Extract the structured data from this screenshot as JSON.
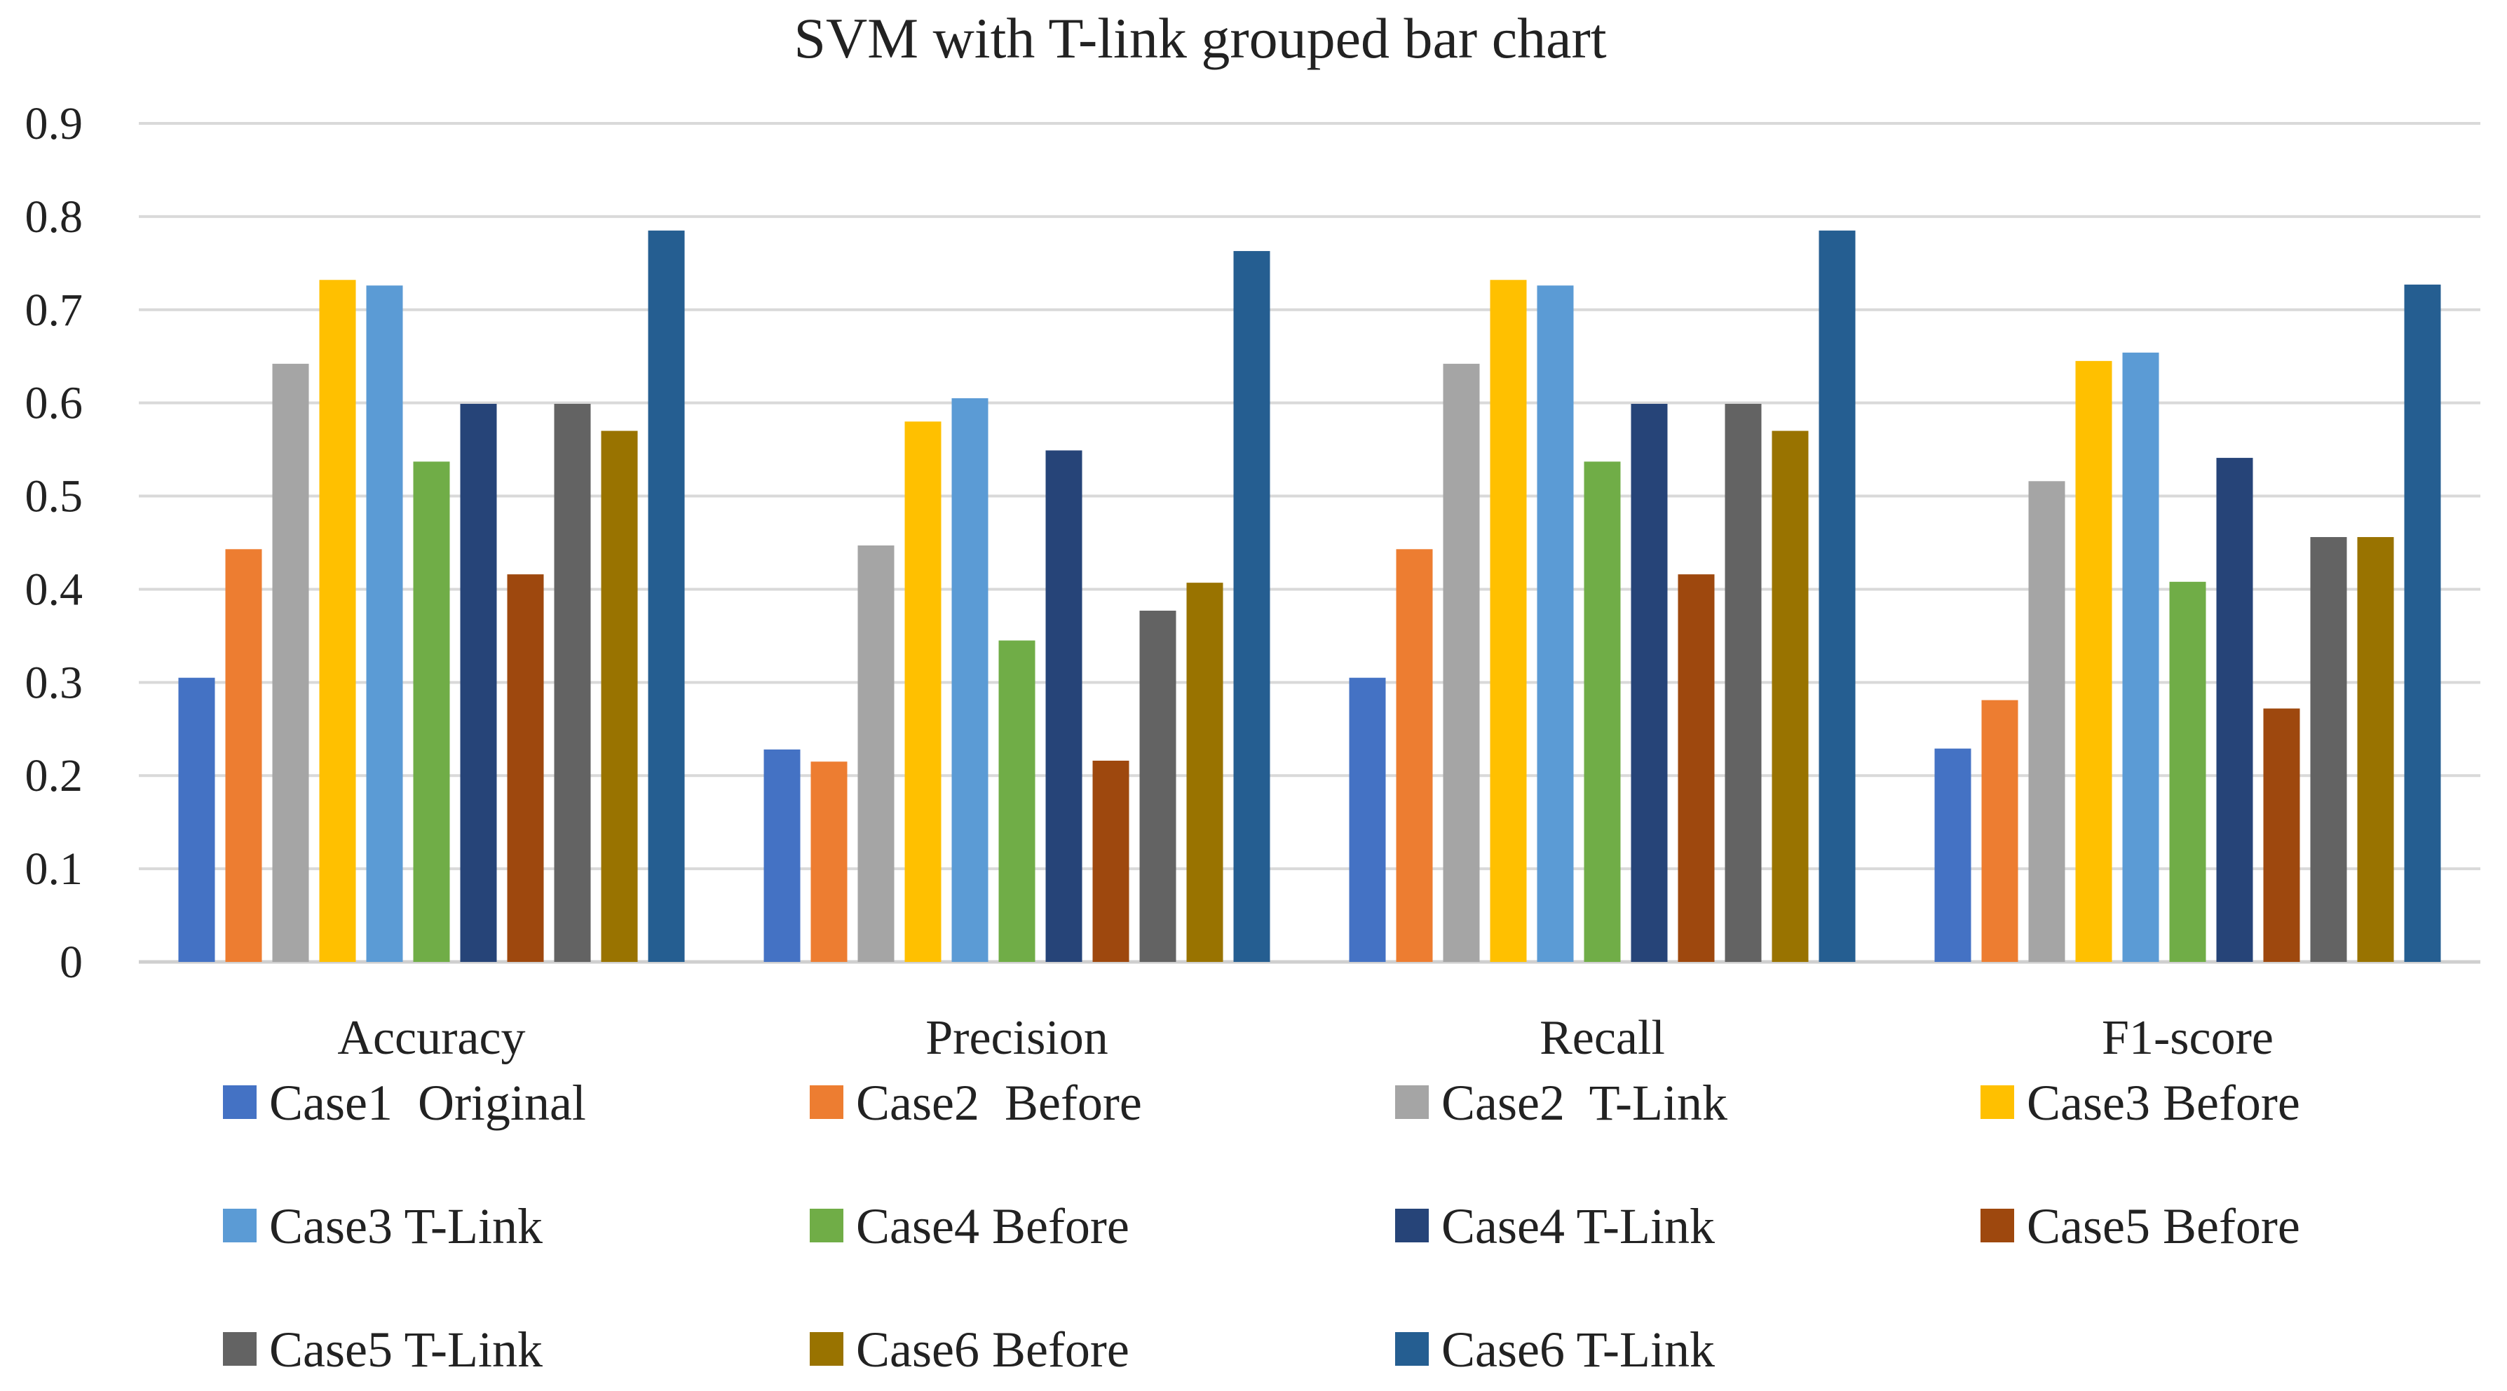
{
  "chart_data": {
    "type": "bar",
    "title": "SVM with T-link grouped bar chart",
    "xlabel": "",
    "ylabel": "",
    "ylim": [
      0,
      0.9
    ],
    "yticks": [
      "0",
      "0.1",
      "0.2",
      "0.3",
      "0.4",
      "0.5",
      "0.6",
      "0.7",
      "0.8",
      "0.9"
    ],
    "grid": true,
    "legend_position": "bottom",
    "categories": [
      "Accuracy",
      "Precision",
      "Recall",
      "F1-score"
    ],
    "series": [
      {
        "name": "Case1  Original",
        "color": "#4472C4",
        "values": [
          0.305,
          0.228,
          0.305,
          0.229
        ]
      },
      {
        "name": "Case2  Before",
        "color": "#ED7D31",
        "values": [
          0.443,
          0.215,
          0.443,
          0.281
        ]
      },
      {
        "name": "Case2  T-Link",
        "color": "#A5A5A5",
        "values": [
          0.642,
          0.447,
          0.642,
          0.516
        ]
      },
      {
        "name": "Case3 Before",
        "color": "#FFC000",
        "values": [
          0.732,
          0.58,
          0.732,
          0.645
        ]
      },
      {
        "name": "Case3 T-Link",
        "color": "#5B9BD5",
        "values": [
          0.726,
          0.605,
          0.726,
          0.654
        ]
      },
      {
        "name": "Case4 Before",
        "color": "#70AD47",
        "values": [
          0.537,
          0.345,
          0.537,
          0.408
        ]
      },
      {
        "name": "Case4 T-Link",
        "color": "#264478",
        "values": [
          0.599,
          0.549,
          0.599,
          0.541
        ]
      },
      {
        "name": "Case5 Before",
        "color": "#9E480E",
        "values": [
          0.416,
          0.216,
          0.416,
          0.272
        ]
      },
      {
        "name": "Case5 T-Link",
        "color": "#636363",
        "values": [
          0.599,
          0.377,
          0.599,
          0.456
        ]
      },
      {
        "name": "Case6 Before",
        "color": "#997300",
        "values": [
          0.57,
          0.407,
          0.57,
          0.456
        ]
      },
      {
        "name": "Case6 T-Link",
        "color": "#255E91",
        "values": [
          0.785,
          0.763,
          0.785,
          0.727
        ]
      }
    ]
  }
}
